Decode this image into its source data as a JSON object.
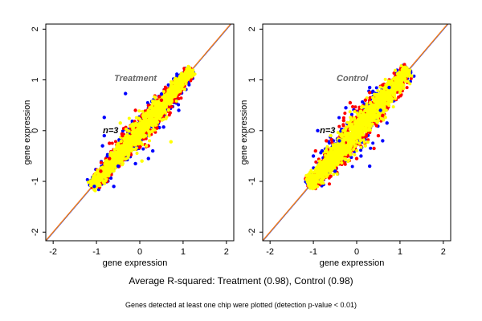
{
  "chart_data": [
    {
      "type": "scatter",
      "title": "Treatment",
      "annotation": "n=3",
      "xlabel": "gene expression",
      "ylabel": "gene expression",
      "xlim": [
        -2.17,
        2.17
      ],
      "ylim": [
        -2.17,
        2.1
      ],
      "xticks": [
        "-2",
        "-1",
        "0",
        "1",
        "2"
      ],
      "yticks": [
        "-2",
        "-1",
        "0",
        "1",
        "2"
      ],
      "grid": false,
      "reference_line": "y = x",
      "series_colors": [
        "#0000ff",
        "#ff0000",
        "#ffff00"
      ],
      "series": [
        {
          "color": "#0000ff",
          "points": [
            [
              -0.33,
              0.73
            ],
            [
              -0.82,
              0.26
            ],
            [
              -0.82,
              -0.1
            ],
            [
              -0.86,
              -0.3
            ],
            [
              -0.5,
              -0.7
            ],
            [
              -0.1,
              -0.65
            ],
            [
              0.3,
              -0.4
            ],
            [
              0.45,
              0.06
            ],
            [
              0.55,
              0.07
            ],
            [
              0.9,
              0.4
            ],
            [
              0.5,
              0.72
            ],
            [
              0.2,
              -0.55
            ],
            [
              -0.6,
              -1.1
            ],
            [
              -1.05,
              -1.1
            ]
          ]
        },
        {
          "color": "#ff0000",
          "points": [
            [
              -0.7,
              -0.25
            ],
            [
              -0.7,
              -0.55
            ],
            [
              -0.4,
              -0.1
            ],
            [
              0.45,
              0.67
            ],
            [
              0.5,
              0.6
            ],
            [
              0.4,
              0.05
            ],
            [
              0.2,
              -0.3
            ],
            [
              -0.1,
              0.4
            ],
            [
              -0.9,
              -0.8
            ],
            [
              0.7,
              0.35
            ]
          ]
        },
        {
          "color": "#ffff00",
          "points": [
            [
              0.72,
              -0.22
            ],
            [
              0.05,
              -0.6
            ],
            [
              0.3,
              0.58
            ],
            [
              0.62,
              0.27
            ],
            [
              -0.45,
              0.15
            ],
            [
              0.15,
              -0.3
            ],
            [
              0.2,
              0.4
            ]
          ]
        }
      ]
    },
    {
      "type": "scatter",
      "title": "Control",
      "annotation": "n=3",
      "xlabel": "gene expression",
      "ylabel": "gene expression",
      "xlim": [
        -2.17,
        2.17
      ],
      "ylim": [
        -2.17,
        2.1
      ],
      "xticks": [
        "-2",
        "-1",
        "0",
        "1",
        "2"
      ],
      "yticks": [
        "-2",
        "-1",
        "0",
        "1",
        "2"
      ],
      "grid": false,
      "reference_line": "y = x",
      "series_colors": [
        "#0000ff",
        "#ff0000",
        "#ffff00"
      ],
      "series": [
        {
          "color": "#0000ff",
          "points": [
            [
              -0.25,
              0.45
            ],
            [
              0.3,
              0.85
            ],
            [
              0.55,
              0.4
            ],
            [
              0.7,
              0.15
            ],
            [
              -0.8,
              -0.4
            ],
            [
              -1.0,
              -0.5
            ],
            [
              -0.5,
              -0.8
            ],
            [
              0.1,
              -0.5
            ],
            [
              0.6,
              -0.2
            ],
            [
              0.75,
              0.85
            ],
            [
              -0.9,
              0.0
            ],
            [
              -0.4,
              -0.2
            ],
            [
              0.3,
              -0.7
            ]
          ]
        },
        {
          "color": "#ff0000",
          "points": [
            [
              -0.15,
              0.55
            ],
            [
              0.3,
              0.75
            ],
            [
              0.6,
              0.9
            ],
            [
              0.5,
              -0.1
            ],
            [
              0.6,
              0.3
            ],
            [
              -0.95,
              -0.4
            ],
            [
              -0.6,
              -0.9
            ],
            [
              0.0,
              -0.55
            ],
            [
              0.4,
              -0.35
            ],
            [
              -0.3,
              0.2
            ],
            [
              0.2,
              0.6
            ],
            [
              -0.7,
              -0.2
            ]
          ]
        },
        {
          "color": "#ffff00",
          "points": [
            [
              -0.6,
              -0.1
            ],
            [
              0.2,
              -0.3
            ],
            [
              0.4,
              0.6
            ],
            [
              -0.8,
              -0.7
            ],
            [
              0.5,
              0.2
            ]
          ]
        }
      ]
    }
  ],
  "caption": "Average R-squared: Treatment (0.98), Control (0.98)",
  "footnote": "Genes detected at least one chip were plotted (detection p-value < 0.01)"
}
